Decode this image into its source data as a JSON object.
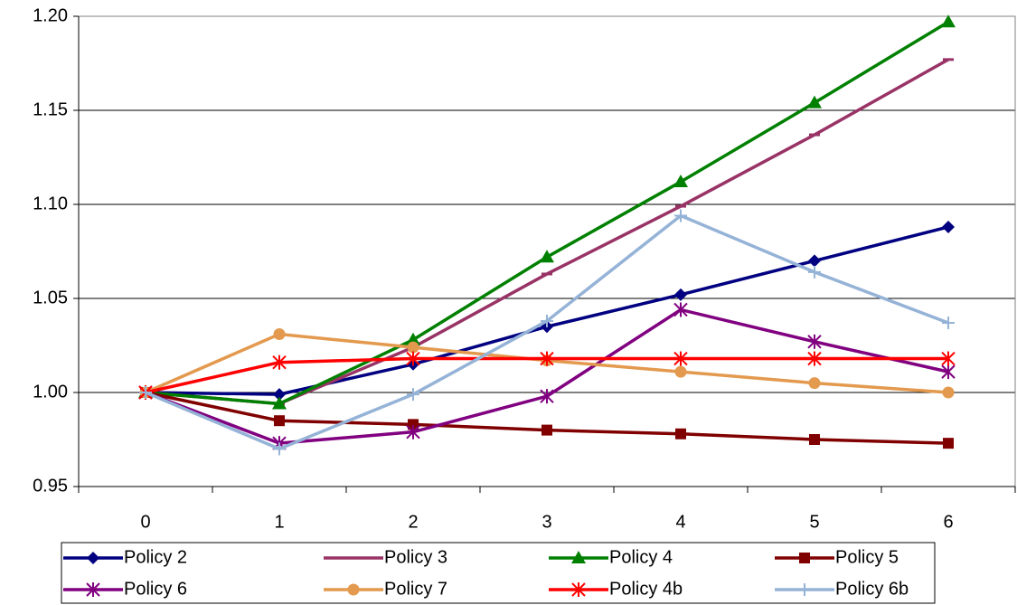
{
  "chart_data": {
    "type": "line",
    "categories": [
      "0",
      "1",
      "2",
      "3",
      "4",
      "5",
      "6"
    ],
    "ylim": [
      0.95,
      1.2
    ],
    "yticks": [
      0.95,
      {
        "value": 1.0,
        "label": "1.00"
      },
      1.05,
      {
        "value": 1.1,
        "label": "1.10"
      },
      1.15,
      {
        "value": 1.2,
        "label": "1.20"
      }
    ],
    "grid": true,
    "legend": "bottom",
    "series": [
      {
        "name": "Policy 2",
        "color": "#000080",
        "marker": "diamond",
        "values": [
          1.0,
          0.999,
          1.015,
          1.035,
          1.052,
          1.07,
          1.088
        ]
      },
      {
        "name": "Policy 3",
        "color": "#993366",
        "marker": "dash",
        "values": [
          1.0,
          0.994,
          1.024,
          1.063,
          1.099,
          1.137,
          1.177
        ]
      },
      {
        "name": "Policy 4",
        "color": "#008000",
        "marker": "triangle",
        "values": [
          1.0,
          0.994,
          1.028,
          1.072,
          1.112,
          1.154,
          1.197
        ]
      },
      {
        "name": "Policy 5",
        "color": "#800000",
        "marker": "square",
        "values": [
          1.0,
          0.985,
          0.983,
          0.98,
          0.978,
          0.975,
          0.973
        ]
      },
      {
        "name": "Policy 6",
        "color": "#800080",
        "marker": "star",
        "values": [
          1.0,
          0.973,
          0.979,
          0.998,
          1.044,
          1.027,
          1.011
        ]
      },
      {
        "name": "Policy 7",
        "color": "#e3994e",
        "marker": "circle",
        "values": [
          1.0,
          1.031,
          1.024,
          1.017,
          1.011,
          1.005,
          1.0
        ]
      },
      {
        "name": "Policy 4b",
        "color": "#ff0000",
        "marker": "star",
        "values": [
          1.0,
          1.016,
          1.018,
          1.018,
          1.018,
          1.018,
          1.018
        ]
      },
      {
        "name": "Policy 6b",
        "color": "#95b3d7",
        "marker": "plus",
        "values": [
          1.0,
          0.97,
          0.999,
          1.038,
          1.094,
          1.064,
          1.037
        ]
      }
    ]
  }
}
